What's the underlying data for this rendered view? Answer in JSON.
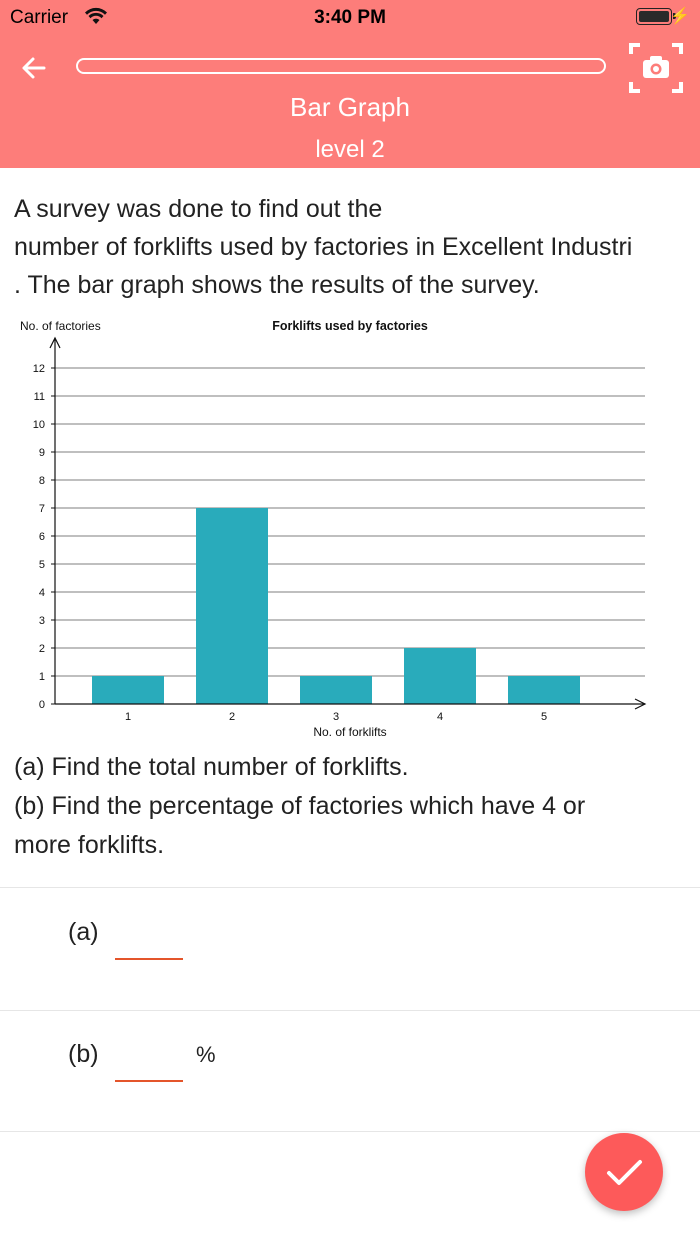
{
  "status_bar": {
    "carrier": "Carrier",
    "time": "3:40 PM",
    "battery_level": 1.0
  },
  "header": {
    "title": "Bar Graph",
    "subtitle": "level 2",
    "progress": 0.0,
    "back_icon": "arrow-left-icon",
    "camera_icon": "camera-scan-icon"
  },
  "question": {
    "lines": [
      "A survey was done to find out the",
      "number of forklifts used by factories in Excellent Industri",
      ". The bar graph shows the results of the survey."
    ],
    "parts": [
      "(a) Find the total number of forklifts.",
      "(b) Find the percentage of factories which have 4 or",
      "more forklifts."
    ]
  },
  "chart_data": {
    "type": "bar",
    "title": "Forklifts used by factories",
    "xlabel": "No. of forklifts",
    "ylabel": "No. of factories",
    "categories": [
      "1",
      "2",
      "3",
      "4",
      "5"
    ],
    "values": [
      1,
      7,
      1,
      2,
      1
    ],
    "ylim": [
      0,
      12
    ],
    "yticks": [
      0,
      1,
      2,
      3,
      4,
      5,
      6,
      7,
      8,
      9,
      10,
      11,
      12
    ],
    "grid": true,
    "bar_color": "#29abbb"
  },
  "answers": {
    "a": {
      "label": "(a)",
      "value": ""
    },
    "b": {
      "label": "(b)",
      "value": "",
      "unit": "%"
    }
  },
  "submit_icon": "checkmark-icon",
  "colors": {
    "header": "#fd7d7a",
    "fab": "#fd5a5a",
    "underline": "#e4552b"
  }
}
